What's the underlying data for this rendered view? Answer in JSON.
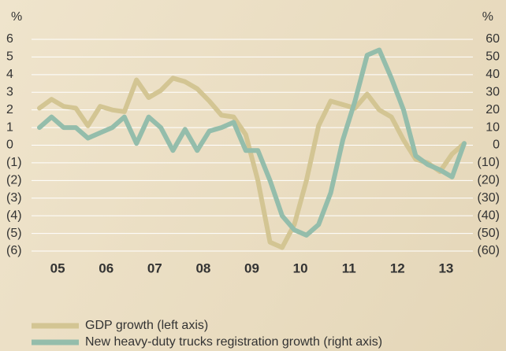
{
  "chart_data": {
    "type": "line",
    "categories": [
      null,
      "05",
      null,
      null,
      null,
      "06",
      null,
      null,
      null,
      "07",
      null,
      null,
      null,
      "08",
      null,
      null,
      null,
      "09",
      null,
      null,
      null,
      "10",
      null,
      null,
      null,
      "11",
      null,
      null,
      null,
      "12",
      null,
      null,
      null,
      "13",
      null,
      null
    ],
    "y_label": "%",
    "y2_label": "%",
    "series": [
      {
        "name": "GDP growth (left axis)",
        "color": "#d3c593",
        "values": [
          2.1,
          2.6,
          2.2,
          2.1,
          1.1,
          2.2,
          2.0,
          1.9,
          3.7,
          2.7,
          3.1,
          3.8,
          3.6,
          3.2,
          2.5,
          1.7,
          1.6,
          0.6,
          -2.0,
          -5.5,
          -5.8,
          -4.5,
          -2.0,
          1.1,
          2.5,
          2.3,
          2.1,
          2.9,
          2.0,
          1.6,
          0.3,
          -0.8,
          -1.0,
          -1.5,
          -0.5,
          0.1
        ]
      },
      {
        "name": "New heavy-duty trucks registration growth (right axis)",
        "color": "#94bdab",
        "axis": "y2",
        "values": [
          10,
          16,
          10,
          10,
          4,
          7,
          10,
          16,
          1,
          16,
          10,
          -3,
          9,
          -3,
          8,
          10,
          13,
          -3,
          -3,
          -20,
          -40,
          -48,
          -51,
          -45,
          -27,
          3,
          25,
          51,
          54,
          38,
          20,
          -6,
          -11,
          -14,
          -18,
          1
        ]
      }
    ],
    "ylim": [
      -6,
      6
    ],
    "yticks": [
      6,
      5,
      4,
      3,
      2,
      1,
      0,
      {
        "value": -1,
        "label": "(1)"
      },
      {
        "value": -2,
        "label": "(2)"
      },
      {
        "value": -3,
        "label": "(3)"
      },
      {
        "value": -4,
        "label": "(4)"
      },
      {
        "value": -5,
        "label": "(5)"
      },
      {
        "value": -6,
        "label": "(6)"
      }
    ],
    "y2lim": [
      -60,
      60
    ],
    "y2ticks": [
      60,
      50,
      40,
      30,
      20,
      10,
      0,
      {
        "value": -10,
        "label": "(10)"
      },
      {
        "value": -20,
        "label": "(20)"
      },
      {
        "value": -30,
        "label": "(30)"
      },
      {
        "value": -40,
        "label": "(40)"
      },
      {
        "value": -50,
        "label": "(50)"
      },
      {
        "value": -60,
        "label": "(60)"
      }
    ],
    "grid": true,
    "legend": "bottom-left"
  }
}
